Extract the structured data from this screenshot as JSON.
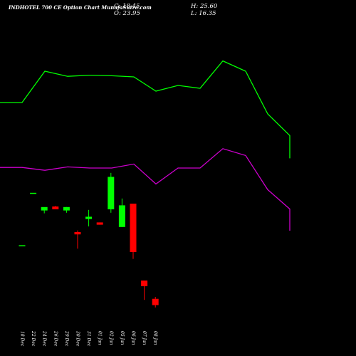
{
  "header": {
    "title": "INDHOTEL 700 CE Option Chart MunafaSutra.com",
    "close_text": "C: 18.45",
    "open_text": "O: 23.95",
    "high_text": "H: 25.60",
    "low_text": "L: 16.35"
  },
  "colors": {
    "background": "#000000",
    "bull": "#00ff00",
    "bear": "#ff0000",
    "upper_band": "#00ff00",
    "lower_band": "#cc00cc",
    "text": "#ffffff"
  },
  "chart_data": {
    "type": "candlestick",
    "categories": [
      "18 Dec",
      "22 Dec",
      "24 Dec",
      "26 Dec",
      "29 Dec",
      "30 Dec",
      "31 Dec",
      "01 Jan",
      "02 Jan",
      "05 Jan",
      "06 Jan",
      "07 Jan",
      "08 Jan"
    ],
    "candles": [
      {
        "open": 71.0,
        "high": 71.0,
        "low": 71.0,
        "close": 71.0
      },
      {
        "open": 117.0,
        "high": 117.0,
        "low": 117.0,
        "close": 117.0
      },
      {
        "open": 101.5,
        "high": 103.5,
        "low": 99.0,
        "close": 104.5
      },
      {
        "open": 105.0,
        "high": 105.5,
        "low": 102.5,
        "close": 102.5
      },
      {
        "open": 101.5,
        "high": 104.5,
        "low": 99.5,
        "close": 104.5
      },
      {
        "open": 82.5,
        "high": 84.0,
        "low": 68.0,
        "close": 80.5
      },
      {
        "open": 94.0,
        "high": 102.0,
        "low": 87.5,
        "close": 96.0
      },
      {
        "open": 91.0,
        "high": 91.0,
        "low": 89.0,
        "close": 89.0
      },
      {
        "open": 102.5,
        "high": 134.5,
        "low": 99.5,
        "close": 131.0
      },
      {
        "open": 87.0,
        "high": 112.0,
        "low": 87.0,
        "close": 106.0
      },
      {
        "open": 107.5,
        "high": 107.5,
        "low": 59.0,
        "close": 65.0
      },
      {
        "open": 40.0,
        "high": 40.0,
        "low": 23.0,
        "close": 35.0
      },
      {
        "open": 23.95,
        "high": 25.6,
        "low": 16.35,
        "close": 18.45
      }
    ],
    "upper_band": [
      470,
      470,
      525,
      516,
      518,
      517,
      515,
      490,
      500,
      495,
      543,
      525,
      450,
      412,
      372
    ],
    "lower_band": [
      356,
      356,
      351,
      357,
      355,
      355,
      362,
      327,
      355,
      355,
      389,
      377,
      317,
      283,
      245
    ]
  }
}
